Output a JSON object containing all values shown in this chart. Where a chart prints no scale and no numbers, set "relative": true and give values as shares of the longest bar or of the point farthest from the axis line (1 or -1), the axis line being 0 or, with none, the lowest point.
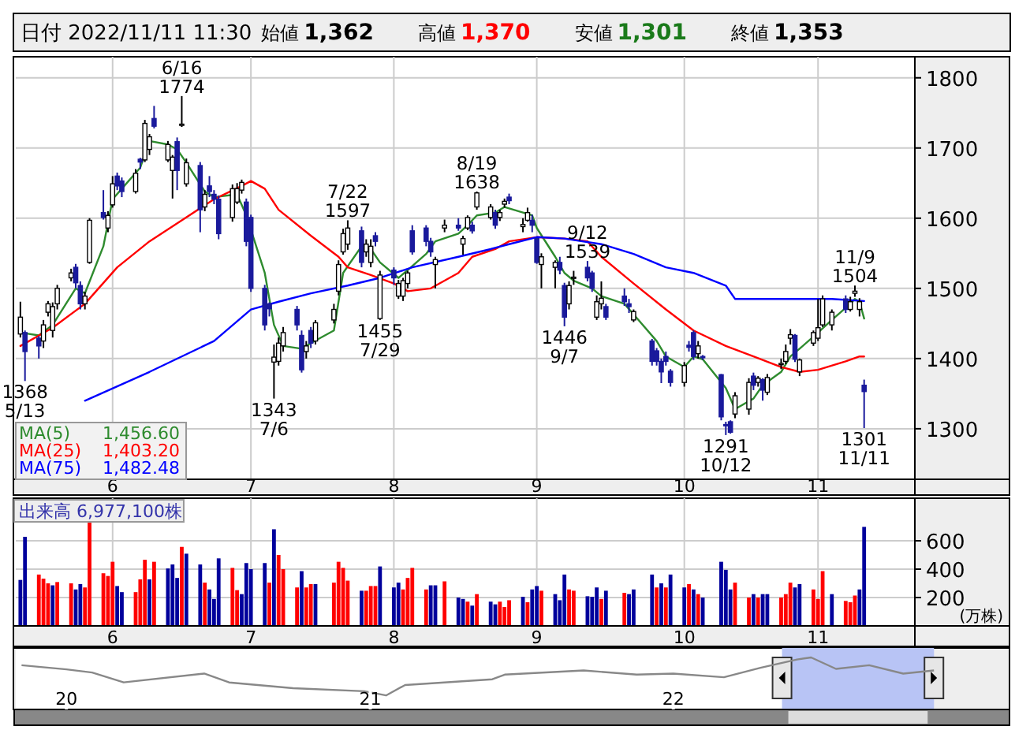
{
  "chart_data": [
    {
      "type": "candlestick",
      "title": "日付 2022/11/11 11:30",
      "x": [
        "2022-05-12",
        "2022-05-13",
        "2022-05-16",
        "2022-05-17",
        "2022-05-18",
        "2022-05-19",
        "2022-05-20",
        "2022-05-23",
        "2022-05-24",
        "2022-05-25",
        "2022-05-26",
        "2022-05-27",
        "2022-05-30",
        "2022-05-31",
        "2022-06-01",
        "2022-06-02",
        "2022-06-03",
        "2022-06-06",
        "2022-06-07",
        "2022-06-08",
        "2022-06-09",
        "2022-06-10",
        "2022-06-13",
        "2022-06-14",
        "2022-06-15",
        "2022-06-16",
        "2022-06-17",
        "2022-06-20",
        "2022-06-21",
        "2022-06-22",
        "2022-06-23",
        "2022-06-24",
        "2022-06-27",
        "2022-06-28",
        "2022-06-29",
        "2022-06-30",
        "2022-07-01",
        "2022-07-04",
        "2022-07-05",
        "2022-07-06",
        "2022-07-07",
        "2022-07-08",
        "2022-07-11",
        "2022-07-12",
        "2022-07-13",
        "2022-07-14",
        "2022-07-15",
        "2022-07-19",
        "2022-07-20",
        "2022-07-21",
        "2022-07-22",
        "2022-07-25",
        "2022-07-26",
        "2022-07-27",
        "2022-07-28",
        "2022-07-29",
        "2022-08-01",
        "2022-08-02",
        "2022-08-03",
        "2022-08-04",
        "2022-08-05",
        "2022-08-08",
        "2022-08-09",
        "2022-08-10",
        "2022-08-12",
        "2022-08-15",
        "2022-08-16",
        "2022-08-17",
        "2022-08-18",
        "2022-08-19",
        "2022-08-22",
        "2022-08-23",
        "2022-08-24",
        "2022-08-25",
        "2022-08-26",
        "2022-08-29",
        "2022-08-30",
        "2022-08-31",
        "2022-09-01",
        "2022-09-02",
        "2022-09-05",
        "2022-09-06",
        "2022-09-07",
        "2022-09-08",
        "2022-09-09",
        "2022-09-12",
        "2022-09-13",
        "2022-09-14",
        "2022-09-15",
        "2022-09-16",
        "2022-09-20",
        "2022-09-21",
        "2022-09-22",
        "2022-09-26",
        "2022-09-27",
        "2022-09-28",
        "2022-09-29",
        "2022-09-30",
        "2022-10-03",
        "2022-10-04",
        "2022-10-05",
        "2022-10-06",
        "2022-10-07",
        "2022-10-11",
        "2022-10-12",
        "2022-10-13",
        "2022-10-14",
        "2022-10-17",
        "2022-10-18",
        "2022-10-19",
        "2022-10-20",
        "2022-10-21",
        "2022-10-24",
        "2022-10-25",
        "2022-10-26",
        "2022-10-27",
        "2022-10-28",
        "2022-10-31",
        "2022-11-01",
        "2022-11-02",
        "2022-11-04",
        "2022-11-07",
        "2022-11-08",
        "2022-11-09",
        "2022-11-10",
        "2022-11-11"
      ],
      "ohlc": [
        [
          1435,
          1481,
          1430,
          1459
        ],
        [
          1437,
          1440,
          1368,
          1410
        ],
        [
          1429,
          1432,
          1400,
          1418
        ],
        [
          1425,
          1455,
          1415,
          1448
        ],
        [
          1466,
          1482,
          1460,
          1478
        ],
        [
          1440,
          1480,
          1430,
          1474
        ],
        [
          1478,
          1505,
          1470,
          1500
        ],
        [
          1515,
          1528,
          1510,
          1522
        ],
        [
          1530,
          1535,
          1500,
          1508
        ],
        [
          1504,
          1510,
          1470,
          1478
        ],
        [
          1478,
          1495,
          1470,
          1489
        ],
        [
          1537,
          1600,
          1535,
          1597
        ],
        [
          1608,
          1640,
          1598,
          1601
        ],
        [
          1586,
          1610,
          1580,
          1604
        ],
        [
          1619,
          1660,
          1615,
          1649
        ],
        [
          1660,
          1665,
          1640,
          1646
        ],
        [
          1653,
          1658,
          1630,
          1638
        ],
        [
          1638,
          1670,
          1635,
          1664
        ],
        [
          1684,
          1686,
          1670,
          1680
        ],
        [
          1683,
          1740,
          1680,
          1735
        ],
        [
          1698,
          1720,
          1690,
          1716
        ],
        [
          1742,
          1760,
          1728,
          1731
        ],
        [
          1683,
          1710,
          1680,
          1705
        ],
        [
          1668,
          1690,
          1628,
          1687
        ],
        [
          1709,
          1715,
          1640,
          1668
        ],
        [
          1733,
          1774,
          1730,
          1734
        ],
        [
          1649,
          1685,
          1645,
          1679
        ],
        [
          1675,
          1680,
          1580,
          1612
        ],
        [
          1616,
          1640,
          1610,
          1634
        ],
        [
          1646,
          1660,
          1630,
          1638
        ],
        [
          1634,
          1640,
          1620,
          1627
        ],
        [
          1627,
          1632,
          1570,
          1578
        ],
        [
          1601,
          1648,
          1595,
          1642
        ],
        [
          1623,
          1650,
          1620,
          1642
        ],
        [
          1640,
          1655,
          1635,
          1651
        ],
        [
          1623,
          1628,
          1560,
          1567
        ],
        [
          1601,
          1605,
          1495,
          1500
        ],
        [
          1500,
          1505,
          1440,
          1448
        ],
        [
          1478,
          1480,
          1460,
          1471
        ],
        [
          1395,
          1420,
          1343,
          1402
        ],
        [
          1396,
          1430,
          1390,
          1422
        ],
        [
          1418,
          1445,
          1410,
          1437
        ],
        [
          1470,
          1475,
          1440,
          1448
        ],
        [
          1433,
          1440,
          1380,
          1384
        ],
        [
          1410,
          1425,
          1400,
          1418
        ],
        [
          1440,
          1445,
          1415,
          1422
        ],
        [
          1425,
          1455,
          1420,
          1451
        ],
        [
          1455,
          1478,
          1450,
          1470
        ],
        [
          1496,
          1540,
          1490,
          1534
        ],
        [
          1552,
          1585,
          1548,
          1578
        ],
        [
          1563,
          1597,
          1555,
          1586
        ],
        [
          1582,
          1588,
          1530,
          1537
        ],
        [
          1552,
          1570,
          1545,
          1563
        ],
        [
          1537,
          1570,
          1530,
          1560
        ],
        [
          1575,
          1580,
          1560,
          1567
        ],
        [
          1457,
          1525,
          1455,
          1519
        ],
        [
          1526,
          1530,
          1505,
          1515
        ],
        [
          1489,
          1512,
          1485,
          1507
        ],
        [
          1489,
          1515,
          1482,
          1511
        ],
        [
          1507,
          1525,
          1500,
          1522
        ],
        [
          1582,
          1590,
          1548,
          1552
        ],
        [
          1586,
          1590,
          1560,
          1567
        ],
        [
          1567,
          1572,
          1545,
          1552
        ],
        [
          1534,
          1545,
          1500,
          1541
        ],
        [
          1586,
          1598,
          1580,
          1590
        ],
        [
          1590,
          1600,
          1582,
          1586
        ],
        [
          1563,
          1575,
          1548,
          1571
        ],
        [
          1586,
          1604,
          1583,
          1601
        ],
        [
          1590,
          1595,
          1578,
          1582
        ],
        [
          1616,
          1638,
          1612,
          1636
        ],
        [
          1601,
          1620,
          1598,
          1616
        ],
        [
          1608,
          1612,
          1585,
          1590
        ],
        [
          1601,
          1612,
          1596,
          1608
        ],
        [
          1620,
          1628,
          1615,
          1624
        ],
        [
          1630,
          1635,
          1620,
          1625
        ],
        [
          1588,
          1600,
          1580,
          1591
        ],
        [
          1597,
          1615,
          1595,
          1608
        ],
        [
          1597,
          1605,
          1580,
          1590
        ],
        [
          1571,
          1572,
          1535,
          1537
        ],
        [
          1534,
          1550,
          1500,
          1545
        ],
        [
          1530,
          1540,
          1500,
          1537
        ],
        [
          1537,
          1545,
          1520,
          1526
        ],
        [
          1504,
          1508,
          1446,
          1459
        ],
        [
          1478,
          1510,
          1470,
          1504
        ],
        [
          1515,
          1525,
          1505,
          1516
        ],
        [
          1530,
          1539,
          1510,
          1515
        ],
        [
          1522,
          1525,
          1495,
          1500
        ],
        [
          1459,
          1490,
          1455,
          1481
        ],
        [
          1478,
          1510,
          1470,
          1486
        ],
        [
          1474,
          1478,
          1455,
          1459
        ],
        [
          1489,
          1500,
          1475,
          1481
        ],
        [
          1478,
          1485,
          1465,
          1474
        ],
        [
          1455,
          1470,
          1452,
          1467
        ],
        [
          1425,
          1428,
          1390,
          1396
        ],
        [
          1411,
          1415,
          1390,
          1396
        ],
        [
          1396,
          1400,
          1365,
          1381
        ],
        [
          1403,
          1410,
          1390,
          1396
        ],
        [
          1382,
          1385,
          1360,
          1366
        ],
        [
          1366,
          1395,
          1360,
          1390
        ],
        [
          1419,
          1425,
          1410,
          1416
        ],
        [
          1437,
          1440,
          1398,
          1403
        ],
        [
          1407,
          1425,
          1400,
          1418
        ],
        [
          1403,
          1405,
          1398,
          1402
        ],
        [
          1377,
          1378,
          1312,
          1317
        ],
        [
          1306,
          1310,
          1291,
          1305
        ],
        [
          1310,
          1312,
          1293,
          1295
        ],
        [
          1321,
          1352,
          1315,
          1347
        ],
        [
          1328,
          1372,
          1320,
          1366
        ],
        [
          1375,
          1380,
          1355,
          1362
        ],
        [
          1366,
          1375,
          1360,
          1372
        ],
        [
          1370,
          1372,
          1340,
          1355
        ],
        [
          1352,
          1378,
          1348,
          1373
        ],
        [
          1392,
          1400,
          1385,
          1393
        ],
        [
          1396,
          1420,
          1392,
          1410
        ],
        [
          1429,
          1442,
          1420,
          1434
        ],
        [
          1433,
          1435,
          1395,
          1399
        ],
        [
          1381,
          1400,
          1375,
          1398
        ],
        [
          1422,
          1440,
          1418,
          1437
        ],
        [
          1429,
          1485,
          1425,
          1444
        ],
        [
          1448,
          1490,
          1445,
          1485
        ],
        [
          1448,
          1470,
          1440,
          1466
        ],
        [
          1485,
          1490,
          1465,
          1470
        ],
        [
          1470,
          1488,
          1467,
          1481
        ],
        [
          1493,
          1504,
          1488,
          1496
        ],
        [
          1470,
          1486,
          1460,
          1481
        ],
        [
          1362,
          1370,
          1301,
          1353
        ]
      ],
      "series": [
        {
          "name": "MA(5) 1,456.60",
          "type": "line",
          "color": "#2e8b2e",
          "x": [
            "2022-05-12",
            "2022-05-16",
            "2022-05-19",
            "2022-05-24",
            "2022-05-26",
            "2022-05-30",
            "2022-06-01",
            "2022-06-03",
            "2022-06-07",
            "2022-06-09",
            "2022-06-13",
            "2022-06-15",
            "2022-06-17",
            "2022-06-21",
            "2022-06-23",
            "2022-06-28",
            "2022-06-30",
            "2022-07-04",
            "2022-07-06",
            "2022-07-08",
            "2022-07-12",
            "2022-07-14",
            "2022-07-19",
            "2022-07-21",
            "2022-07-25",
            "2022-07-27",
            "2022-07-29",
            "2022-08-02",
            "2022-08-04",
            "2022-08-08",
            "2022-08-10",
            "2022-08-15",
            "2022-08-17",
            "2022-08-19",
            "2022-08-23",
            "2022-08-25",
            "2022-08-29",
            "2022-08-31",
            "2022-09-01",
            "2022-09-05",
            "2022-09-07",
            "2022-09-09",
            "2022-09-13",
            "2022-09-15",
            "2022-09-20",
            "2022-09-22",
            "2022-09-27",
            "2022-09-29",
            "2022-10-03",
            "2022-10-05",
            "2022-10-07",
            "2022-10-12",
            "2022-10-14",
            "2022-10-18",
            "2022-10-20",
            "2022-10-24",
            "2022-10-26",
            "2022-10-28",
            "2022-11-01",
            "2022-11-04",
            "2022-11-08",
            "2022-11-09",
            "2022-11-10",
            "2022-11-11"
          ],
          "values": [
            1437,
            1433,
            1448,
            1500,
            1493,
            1560,
            1627,
            1642,
            1672,
            1710,
            1705,
            1698,
            1679,
            1638,
            1630,
            1634,
            1604,
            1522,
            1448,
            1418,
            1414,
            1422,
            1440,
            1522,
            1560,
            1556,
            1537,
            1515,
            1526,
            1549,
            1567,
            1578,
            1590,
            1604,
            1608,
            1616,
            1608,
            1604,
            1586,
            1545,
            1522,
            1511,
            1500,
            1489,
            1478,
            1463,
            1425,
            1403,
            1388,
            1403,
            1399,
            1358,
            1328,
            1343,
            1362,
            1381,
            1403,
            1414,
            1437,
            1455,
            1478,
            1485,
            1481,
            1457
          ]
        },
        {
          "name": "MA(25) 1,403.20",
          "type": "line",
          "color": "#ff0000",
          "x": [
            "2022-05-12",
            "2022-05-19",
            "2022-05-26",
            "2022-06-02",
            "2022-06-09",
            "2022-06-16",
            "2022-06-23",
            "2022-06-29",
            "2022-07-01",
            "2022-07-04",
            "2022-07-07",
            "2022-07-14",
            "2022-07-20",
            "2022-07-22",
            "2022-07-27",
            "2022-08-01",
            "2022-08-04",
            "2022-08-09",
            "2022-08-15",
            "2022-08-18",
            "2022-08-23",
            "2022-08-26",
            "2022-09-01",
            "2022-09-07",
            "2022-09-12",
            "2022-09-15",
            "2022-09-22",
            "2022-09-29",
            "2022-10-05",
            "2022-10-12",
            "2022-10-18",
            "2022-10-24",
            "2022-10-28",
            "2022-11-01",
            "2022-11-07",
            "2022-11-10",
            "2022-11-11"
          ],
          "values": [
            1418,
            1444,
            1478,
            1530,
            1567,
            1597,
            1627,
            1646,
            1653,
            1642,
            1612,
            1575,
            1545,
            1530,
            1519,
            1507,
            1496,
            1500,
            1522,
            1545,
            1556,
            1567,
            1573,
            1571,
            1567,
            1545,
            1507,
            1470,
            1440,
            1418,
            1403,
            1388,
            1381,
            1384,
            1396,
            1403,
            1403
          ]
        },
        {
          "name": "MA(75) 1,482.48",
          "type": "line",
          "color": "#0000ff",
          "x": [
            "2022-05-26",
            "2022-06-09",
            "2022-06-23",
            "2022-07-01",
            "2022-07-07",
            "2022-07-14",
            "2022-07-22",
            "2022-07-29",
            "2022-08-05",
            "2022-08-15",
            "2022-08-22",
            "2022-08-26",
            "2022-09-01",
            "2022-09-07",
            "2022-09-15",
            "2022-09-22",
            "2022-09-29",
            "2022-10-05",
            "2022-10-12",
            "2022-10-14",
            "2022-10-20",
            "2022-10-28",
            "2022-11-04",
            "2022-11-11"
          ],
          "values": [
            1340,
            1381,
            1425,
            1470,
            1481,
            1493,
            1504,
            1515,
            1530,
            1545,
            1556,
            1563,
            1573,
            1571,
            1563,
            1549,
            1530,
            1522,
            1504,
            1485,
            1485,
            1485,
            1485,
            1482
          ]
        }
      ],
      "xlim": [
        "2022-05-11",
        "2022-11-22"
      ],
      "xticks": [
        {
          "value": "2022-06-01",
          "label": "6"
        },
        {
          "value": "2022-07-01",
          "label": "7"
        },
        {
          "value": "2022-08-01",
          "label": "8"
        },
        {
          "value": "2022-09-01",
          "label": "9"
        },
        {
          "value": "2022-10-03",
          "label": "10"
        },
        {
          "value": "2022-11-01",
          "label": "11"
        }
      ],
      "ylim": [
        1228,
        1830
      ],
      "yticks": [
        1300,
        1400,
        1500,
        1600,
        1700,
        1800
      ],
      "grid": true,
      "legend": "bottom left",
      "annotations": [
        "始値",
        "1,362",
        "高値",
        "1,370",
        "安値",
        "1,301",
        "終値",
        "1,353",
        {
          "text": "6/16\n1774",
          "x": "2022-06-16",
          "y": 1774
        },
        {
          "text": "1368\n5/13",
          "x": "2022-05-13",
          "y": 1368
        },
        {
          "text": "1343\n7/6",
          "x": "2022-07-06",
          "y": 1343
        },
        {
          "text": "7/22\n1597",
          "x": "2022-07-22",
          "y": 1597
        },
        {
          "text": "1455\n7/29",
          "x": "2022-07-29",
          "y": 1455
        },
        {
          "text": "8/19\n1638",
          "x": "2022-08-19",
          "y": 1638
        },
        {
          "text": "1446\n9/7",
          "x": "2022-09-07",
          "y": 1446
        },
        {
          "text": "9/12\n1539",
          "x": "2022-09-12",
          "y": 1539
        },
        {
          "text": "1291\n10/12",
          "x": "2022-10-12",
          "y": 1291
        },
        {
          "text": "11/9\n1504",
          "x": "2022-11-09",
          "y": 1504
        },
        {
          "text": "1301\n11/11",
          "x": "2022-11-11",
          "y": 1301
        }
      ]
    },
    {
      "type": "bar",
      "title": "出来高  6,977,100株",
      "ylabel": "(万株)",
      "x": [
        "2022-05-12",
        "2022-05-13",
        "2022-05-16",
        "2022-05-17",
        "2022-05-18",
        "2022-05-19",
        "2022-05-20",
        "2022-05-23",
        "2022-05-24",
        "2022-05-25",
        "2022-05-26",
        "2022-05-27",
        "2022-05-30",
        "2022-05-31",
        "2022-06-01",
        "2022-06-02",
        "2022-06-03",
        "2022-06-06",
        "2022-06-07",
        "2022-06-08",
        "2022-06-09",
        "2022-06-10",
        "2022-06-13",
        "2022-06-14",
        "2022-06-15",
        "2022-06-16",
        "2022-06-17",
        "2022-06-20",
        "2022-06-21",
        "2022-06-22",
        "2022-06-23",
        "2022-06-24",
        "2022-06-27",
        "2022-06-28",
        "2022-06-29",
        "2022-06-30",
        "2022-07-01",
        "2022-07-04",
        "2022-07-05",
        "2022-07-06",
        "2022-07-07",
        "2022-07-08",
        "2022-07-11",
        "2022-07-12",
        "2022-07-13",
        "2022-07-14",
        "2022-07-15",
        "2022-07-19",
        "2022-07-20",
        "2022-07-21",
        "2022-07-22",
        "2022-07-25",
        "2022-07-26",
        "2022-07-27",
        "2022-07-28",
        "2022-07-29",
        "2022-08-01",
        "2022-08-02",
        "2022-08-03",
        "2022-08-04",
        "2022-08-05",
        "2022-08-08",
        "2022-08-09",
        "2022-08-10",
        "2022-08-12",
        "2022-08-15",
        "2022-08-16",
        "2022-08-17",
        "2022-08-18",
        "2022-08-19",
        "2022-08-22",
        "2022-08-23",
        "2022-08-24",
        "2022-08-25",
        "2022-08-26",
        "2022-08-29",
        "2022-08-30",
        "2022-08-31",
        "2022-09-01",
        "2022-09-02",
        "2022-09-05",
        "2022-09-06",
        "2022-09-07",
        "2022-09-08",
        "2022-09-09",
        "2022-09-12",
        "2022-09-13",
        "2022-09-14",
        "2022-09-15",
        "2022-09-16",
        "2022-09-20",
        "2022-09-21",
        "2022-09-22",
        "2022-09-26",
        "2022-09-27",
        "2022-09-28",
        "2022-09-29",
        "2022-09-30",
        "2022-10-03",
        "2022-10-04",
        "2022-10-05",
        "2022-10-06",
        "2022-10-07",
        "2022-10-11",
        "2022-10-12",
        "2022-10-13",
        "2022-10-14",
        "2022-10-17",
        "2022-10-18",
        "2022-10-19",
        "2022-10-20",
        "2022-10-21",
        "2022-10-24",
        "2022-10-25",
        "2022-10-26",
        "2022-10-27",
        "2022-10-28",
        "2022-10-31",
        "2022-11-01",
        "2022-11-02",
        "2022-11-04",
        "2022-11-07",
        "2022-11-08",
        "2022-11-09",
        "2022-11-10",
        "2022-11-11"
      ],
      "values": [
        324,
        628,
        362,
        333,
        300,
        286,
        309,
        300,
        257,
        295,
        271,
        752,
        371,
        352,
        452,
        281,
        238,
        238,
        328,
        466,
        328,
        452,
        405,
        433,
        338,
        557,
        509,
        433,
        305,
        257,
        190,
        476,
        409,
        252,
        224,
        443,
        400,
        443,
        305,
        681,
        500,
        400,
        271,
        386,
        271,
        295,
        295,
        305,
        452,
        409,
        319,
        248,
        248,
        281,
        281,
        419,
        271,
        305,
        257,
        338,
        409,
        257,
        286,
        286,
        314,
        200,
        190,
        171,
        143,
        224,
        171,
        152,
        171,
        133,
        181,
        205,
        167,
        257,
        281,
        248,
        224,
        181,
        362,
        257,
        248,
        209,
        205,
        271,
        190,
        248,
        233,
        224,
        257,
        362,
        271,
        300,
        271,
        362,
        271,
        295,
        257,
        224,
        200,
        452,
        395,
        257,
        305,
        200,
        224,
        200,
        224,
        224,
        200,
        224,
        305,
        271,
        295,
        257,
        190,
        386,
        224,
        176,
        167,
        214,
        257,
        698
      ],
      "colors": [
        "#00009c",
        "#00009c",
        "#ff0000",
        "#ff0000",
        "#ff0000",
        "#00009c",
        "#ff0000",
        "#ff0000",
        "#00009c",
        "#00009c",
        "#ff0000",
        "#ff0000",
        "#ff0000",
        "#ff0000",
        "#ff0000",
        "#00009c",
        "#00009c",
        "#ff0000",
        "#ff0000",
        "#ff0000",
        "#00009c",
        "#ff0000",
        "#00009c",
        "#00009c",
        "#00009c",
        "#ff0000",
        "#00009c",
        "#00009c",
        "#ff0000",
        "#00009c",
        "#00009c",
        "#00009c",
        "#ff0000",
        "#ff0000",
        "#00009c",
        "#00009c",
        "#00009c",
        "#00009c",
        "#ff0000",
        "#00009c",
        "#ff0000",
        "#ff0000",
        "#ff0000",
        "#00009c",
        "#ff0000",
        "#ff0000",
        "#00009c",
        "#ff0000",
        "#ff0000",
        "#ff0000",
        "#ff0000",
        "#00009c",
        "#ff0000",
        "#ff0000",
        "#ff0000",
        "#00009c",
        "#00009c",
        "#00009c",
        "#ff0000",
        "#ff0000",
        "#ff0000",
        "#ff0000",
        "#00009c",
        "#00009c",
        "#ff0000",
        "#00009c",
        "#00009c",
        "#ff0000",
        "#00009c",
        "#ff0000",
        "#00009c",
        "#00009c",
        "#ff0000",
        "#ff0000",
        "#ff0000",
        "#00009c",
        "#ff0000",
        "#00009c",
        "#00009c",
        "#ff0000",
        "#00009c",
        "#00009c",
        "#00009c",
        "#ff0000",
        "#ff0000",
        "#00009c",
        "#00009c",
        "#00009c",
        "#ff0000",
        "#00009c",
        "#ff0000",
        "#00009c",
        "#00009c",
        "#00009c",
        "#ff0000",
        "#00009c",
        "#ff0000",
        "#00009c",
        "#00009c",
        "#ff0000",
        "#00009c",
        "#ff0000",
        "#00009c",
        "#00009c",
        "#00009c",
        "#00009c",
        "#ff0000",
        "#ff0000",
        "#00009c",
        "#ff0000",
        "#00009c",
        "#00009c",
        "#ff0000",
        "#ff0000",
        "#ff0000",
        "#00009c",
        "#00009c",
        "#ff0000",
        "#ff0000",
        "#ff0000",
        "#00009c",
        "#ff0000",
        "#ff0000",
        "#ff0000",
        "#00009c",
        "#00009c"
      ],
      "xlim": [
        "2022-05-11",
        "2022-11-22"
      ],
      "xticks": [
        {
          "value": "2022-06-01",
          "label": "6"
        },
        {
          "value": "2022-07-01",
          "label": "7"
        },
        {
          "value": "2022-08-01",
          "label": "8"
        },
        {
          "value": "2022-09-01",
          "label": "9"
        },
        {
          "value": "2022-10-03",
          "label": "10"
        },
        {
          "value": "2022-11-01",
          "label": "11"
        }
      ],
      "ylim": [
        0,
        900
      ],
      "yticks": [
        200,
        400,
        600
      ],
      "grid": true
    },
    {
      "type": "line",
      "relative": true,
      "color": "#888888",
      "x": [
        "2019-11-08",
        "2020-01-01",
        "2020-02-01",
        "2020-03-10",
        "2020-06-15",
        "2020-07-15",
        "2020-09-30",
        "2020-12-25",
        "2021-01-20",
        "2021-02-12",
        "2021-05-28",
        "2021-06-12",
        "2021-09-15",
        "2021-11-18",
        "2022-01-01",
        "2022-03-03",
        "2022-04-16",
        "2022-05-30",
        "2022-06-16",
        "2022-07-16",
        "2022-08-25",
        "2022-10-05",
        "2022-11-11"
      ],
      "values": [
        0.85,
        0.77,
        0.71,
        0.52,
        0.69,
        0.52,
        0.41,
        0.35,
        0.27,
        0.47,
        0.58,
        0.67,
        0.75,
        0.67,
        0.69,
        0.62,
        0.8,
        0.96,
        1,
        0.78,
        0.85,
        0.69,
        0.75
      ],
      "xlim": [
        "2019-11-01",
        "2023-02-10"
      ],
      "xticks": [
        {
          "value": "2020-01-01",
          "label": "20"
        },
        {
          "value": "2021-01-01",
          "label": "21"
        },
        {
          "value": "2022-01-01",
          "label": "22"
        }
      ],
      "bands": [
        {
          "axis": "x",
          "from": "2022-05-12",
          "to": "2022-11-11",
          "color": "#b8c4f5"
        }
      ]
    }
  ]
}
